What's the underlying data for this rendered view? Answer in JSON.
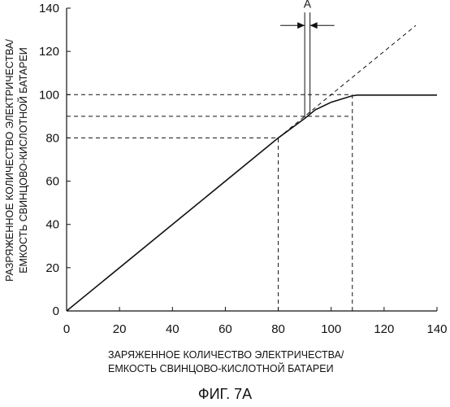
{
  "chart_data": {
    "type": "line",
    "title": "",
    "caption": "ФИГ. 7A",
    "xlabel": [
      "ЗАРЯЖЕННОЕ КОЛИЧЕСТВО ЭЛЕКТРИЧЕСТВА/",
      "ЕМКОСТЬ СВИНЦОВО-КИСЛОТНОЙ БАТАРЕИ"
    ],
    "ylabel": [
      "РАЗРЯЖЕННОЕ КОЛИЧЕСТВО ЭЛЕКТРИЧЕСТВА/",
      "ЕМКОСТЬ СВИНЦОВО-КИСЛОТНОЙ БАТАРЕИ"
    ],
    "xlim": [
      0,
      140
    ],
    "ylim": [
      0,
      140
    ],
    "xticks": [
      "0",
      "20",
      "40",
      "60",
      "80",
      "100",
      "120",
      "140"
    ],
    "yticks": [
      "0",
      "20",
      "40",
      "60",
      "80",
      "100",
      "120",
      "140"
    ],
    "grid": false,
    "series": [
      {
        "style": "solid",
        "x": [
          0,
          80,
          90,
          94,
          100,
          108,
          110,
          140
        ],
        "y": [
          0,
          80,
          89,
          93,
          96.5,
          99.5,
          99.8,
          99.8
        ]
      },
      {
        "style": "dashed",
        "x": [
          80,
          132
        ],
        "y": [
          80,
          132
        ]
      }
    ],
    "reference_lines": {
      "horizontal_y": [
        100,
        90,
        80
      ],
      "vertical_x": [
        80,
        108
      ]
    },
    "annotation": {
      "label": "A",
      "x_left": 90,
      "x_right": 92,
      "arrow_y": 132
    }
  }
}
